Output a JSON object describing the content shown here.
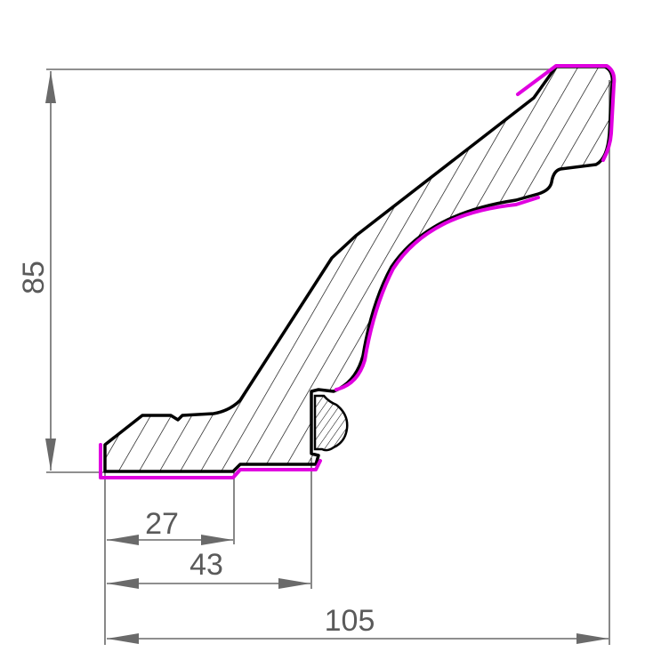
{
  "diagram": {
    "type": "crown-molding-profile-section",
    "dimensions": {
      "height": "85",
      "width_total": "105",
      "width_43": "43",
      "width_27": "27"
    },
    "colors": {
      "profile_stroke": "#000000",
      "highlight_edge": "#e000e0",
      "dimension_line": "#6a6a6a",
      "dimension_text": "#5a5a5a",
      "hatch": "#000000"
    }
  }
}
